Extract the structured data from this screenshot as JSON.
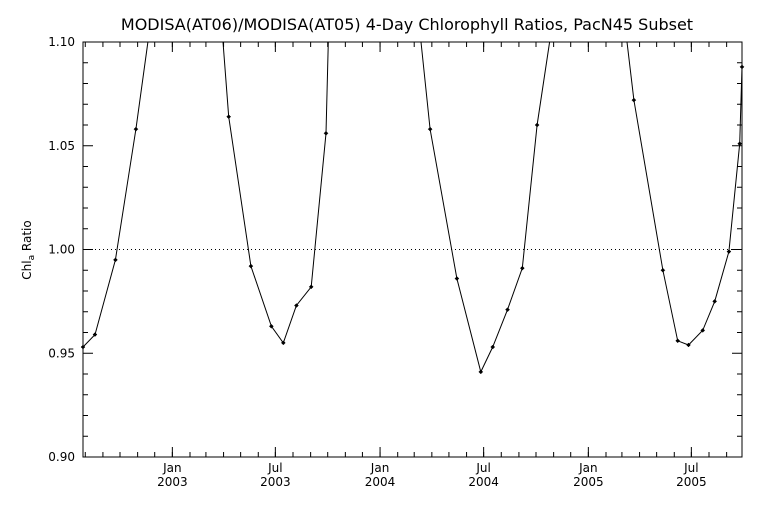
{
  "chart_data": {
    "type": "line",
    "title": "MODISA(AT06)/MODISA(AT05) 4-Day Chlorophyll Ratios, PacN45 Subset",
    "ylabel": "Chl",
    "ylabel_sub": "a",
    "ylabel_suffix": " Ratio",
    "xlabel": "",
    "ylim": [
      0.9,
      1.1
    ],
    "xlim": [
      "2002-07-28",
      "2005-09-28"
    ],
    "yticks": [
      0.9,
      0.95,
      1.0,
      1.05,
      1.1
    ],
    "ytick_labels": [
      "0.90",
      "0.95",
      "1.00",
      "1.05",
      "1.10"
    ],
    "xticks": [
      {
        "date": "2003-01-01",
        "month": "Jan",
        "year": "2003"
      },
      {
        "date": "2003-07-01",
        "month": "Jul",
        "year": "2003"
      },
      {
        "date": "2004-01-01",
        "month": "Jan",
        "year": "2004"
      },
      {
        "date": "2004-07-01",
        "month": "Jul",
        "year": "2004"
      },
      {
        "date": "2005-01-01",
        "month": "Jan",
        "year": "2005"
      },
      {
        "date": "2005-07-01",
        "month": "Jul",
        "year": "2005"
      }
    ],
    "reference_line": 1.0,
    "grid": false,
    "line_color": "#000000",
    "background_color": "#ffffff",
    "series": [
      {
        "points": [
          {
            "x": "2002-07-28",
            "y": 0.953
          },
          {
            "x": "2002-08-18",
            "y": 0.959
          },
          {
            "x": "2002-09-23",
            "y": 0.995
          },
          {
            "x": "2002-10-29",
            "y": 1.058
          },
          {
            "x": "2002-11-19",
            "y": 1.1,
            "marker": false
          },
          {
            "x": "2003-03-31",
            "y": 1.1,
            "marker": false
          },
          {
            "x": "2003-04-10",
            "y": 1.064
          },
          {
            "x": "2003-05-19",
            "y": 0.992
          },
          {
            "x": "2003-06-24",
            "y": 0.963
          },
          {
            "x": "2003-07-15",
            "y": 0.955
          },
          {
            "x": "2003-08-07",
            "y": 0.973
          },
          {
            "x": "2003-09-02",
            "y": 0.982
          },
          {
            "x": "2003-09-28",
            "y": 1.056
          },
          {
            "x": "2003-10-02",
            "y": 1.1,
            "marker": false
          },
          {
            "x": "2004-03-13",
            "y": 1.1,
            "marker": false
          },
          {
            "x": "2004-03-29",
            "y": 1.058
          },
          {
            "x": "2004-05-15",
            "y": 0.986
          },
          {
            "x": "2004-06-26",
            "y": 0.941
          },
          {
            "x": "2004-07-17",
            "y": 0.953
          },
          {
            "x": "2004-08-12",
            "y": 0.971
          },
          {
            "x": "2004-09-07",
            "y": 0.991
          },
          {
            "x": "2004-10-03",
            "y": 1.06
          },
          {
            "x": "2004-10-25",
            "y": 1.1,
            "marker": false
          },
          {
            "x": "2005-03-10",
            "y": 1.1,
            "marker": false
          },
          {
            "x": "2005-03-22",
            "y": 1.072
          },
          {
            "x": "2005-05-12",
            "y": 0.99
          },
          {
            "x": "2005-06-07",
            "y": 0.956
          },
          {
            "x": "2005-06-26",
            "y": 0.954
          },
          {
            "x": "2005-07-21",
            "y": 0.961
          },
          {
            "x": "2005-08-11",
            "y": 0.975
          },
          {
            "x": "2005-09-05",
            "y": 0.999
          },
          {
            "x": "2005-09-24",
            "y": 1.051
          },
          {
            "x": "2005-09-28",
            "y": 1.088
          }
        ]
      }
    ]
  }
}
